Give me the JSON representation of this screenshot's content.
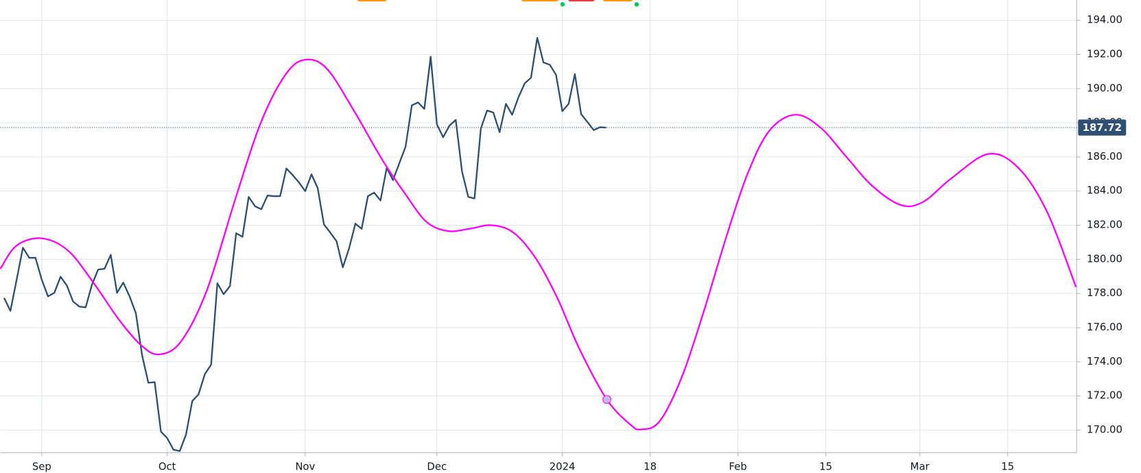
{
  "chart_data": {
    "type": "line",
    "xlim": [
      0.4,
      172
    ],
    "ylim": [
      168.72,
      194.34
    ],
    "grid": true,
    "xticks": [
      {
        "value": 7,
        "label": "Sep"
      },
      {
        "value": 27,
        "label": "Oct"
      },
      {
        "value": 49,
        "label": "Nov"
      },
      {
        "value": 70,
        "label": "Dec"
      },
      {
        "value": 90,
        "label": "2024"
      },
      {
        "value": 104,
        "label": "18"
      },
      {
        "value": 118,
        "label": "Feb"
      },
      {
        "value": 132,
        "label": "15"
      },
      {
        "value": 147,
        "label": "Mar"
      },
      {
        "value": 161,
        "label": "15"
      }
    ],
    "yticks": [
      {
        "value": 170,
        "label": "170.00"
      },
      {
        "value": 172,
        "label": "172.00"
      },
      {
        "value": 174,
        "label": "174.00"
      },
      {
        "value": 176,
        "label": "176.00"
      },
      {
        "value": 178,
        "label": "178.00"
      },
      {
        "value": 180,
        "label": "180.00"
      },
      {
        "value": 182,
        "label": "182.00"
      },
      {
        "value": 184,
        "label": "184.00"
      },
      {
        "value": 186,
        "label": "186.00"
      },
      {
        "value": 188,
        "label": "188.00"
      },
      {
        "value": 190,
        "label": "190.00"
      },
      {
        "value": 192,
        "label": "192.00"
      },
      {
        "value": 194,
        "label": "194.00"
      }
    ],
    "last_price": 187.72,
    "last_price_color": "#2c4f73",
    "series": [
      {
        "color": "#2c4f73",
        "smooth": false,
        "x": [
          1,
          2,
          3,
          4,
          5,
          6,
          7,
          8,
          9,
          10,
          11,
          12,
          13,
          14,
          15,
          16,
          17,
          18,
          19,
          20,
          21,
          22,
          23,
          24,
          25,
          26,
          27,
          28,
          29,
          30,
          31,
          32,
          33,
          34,
          35,
          36,
          37,
          38,
          39,
          40,
          41,
          42,
          43,
          44,
          45,
          46,
          47,
          48,
          49,
          50,
          51,
          52,
          53,
          54,
          55,
          56,
          57,
          58,
          59,
          60,
          61,
          62,
          63,
          64,
          65,
          66,
          67,
          68,
          69,
          70,
          71,
          72,
          73,
          74,
          75,
          76,
          77,
          78,
          79,
          80,
          81,
          82,
          83,
          84,
          85,
          86,
          87,
          88,
          89,
          90,
          91,
          92,
          93,
          94,
          95,
          96,
          97
        ],
        "values": [
          177.74,
          176.98,
          178.81,
          180.68,
          180.09,
          180.09,
          178.81,
          177.83,
          178.04,
          178.98,
          178.47,
          177.53,
          177.23,
          177.19,
          178.51,
          179.4,
          179.45,
          180.26,
          178.04,
          178.64,
          177.83,
          176.85,
          174.38,
          172.77,
          172.81,
          169.91,
          169.53,
          168.85,
          168.77,
          169.74,
          171.7,
          172.09,
          173.28,
          173.83,
          178.6,
          177.96,
          178.43,
          181.53,
          181.32,
          183.66,
          183.11,
          182.94,
          183.74,
          183.7,
          183.7,
          185.32,
          184.94,
          184.51,
          184.0,
          184.98,
          184.17,
          182.04,
          181.57,
          181.06,
          179.53,
          180.64,
          182.09,
          181.79,
          183.7,
          183.91,
          183.45,
          185.36,
          184.64,
          185.62,
          186.6,
          189.02,
          189.19,
          188.81,
          191.87,
          187.91,
          187.15,
          187.83,
          188.17,
          185.15,
          183.66,
          183.57,
          187.66,
          188.72,
          188.6,
          187.45,
          189.11,
          188.47,
          189.49,
          190.3,
          190.64,
          192.98,
          191.53,
          191.4,
          190.81,
          188.68,
          189.11,
          190.85,
          188.51,
          188.04,
          187.57,
          187.74,
          187.72
        ]
      },
      {
        "color": "#ff00ff",
        "smooth": true,
        "marker_index": 26,
        "marker_color": "#c9b8e8",
        "x": [
          0.4,
          3.0,
          7.0,
          11.2,
          15.3,
          19.3,
          22.8,
          25.7,
          29.2,
          33.3,
          38.0,
          42.1,
          46.1,
          49.2,
          52.5,
          56.6,
          61.3,
          64.8,
          68.3,
          71.7,
          75.2,
          78.7,
          82.2,
          85.7,
          89.2,
          92.7,
          97.1,
          100.9,
          102.6,
          105.5,
          109.0,
          112.5,
          116.0,
          119.5,
          123.0,
          127.1,
          131.1,
          135.2,
          139.3,
          143.9,
          147.5,
          152.1,
          157.9,
          162.6,
          167.2,
          171.9
        ],
        "values": [
          179.45,
          180.81,
          181.23,
          180.51,
          178.6,
          176.47,
          174.98,
          174.43,
          175.19,
          178.17,
          183.7,
          188.17,
          190.94,
          191.7,
          191.15,
          188.81,
          185.83,
          183.91,
          182.21,
          181.66,
          181.79,
          182.0,
          181.57,
          180.09,
          177.74,
          174.77,
          171.79,
          170.3,
          170.04,
          170.51,
          173.06,
          176.89,
          181.15,
          184.98,
          187.53,
          188.47,
          187.74,
          186.04,
          184.34,
          183.19,
          183.36,
          184.77,
          186.17,
          185.4,
          182.85,
          178.38
        ]
      }
    ]
  }
}
